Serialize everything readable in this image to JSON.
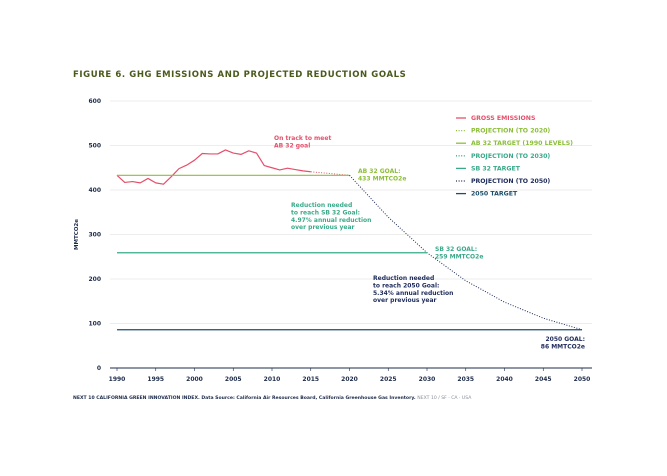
{
  "figure": {
    "title": "FIGURE 6. GHG EMISSIONS AND PROJECTED REDUCTION GOALS",
    "footer_source": "NEXT 10 CALIFORNIA GREEN INNOVATION INDEX. Data Source: California Air Resources Board, California Greenhouse Gas Inventory.",
    "footer_brand": "NEXT 10 / SF · CA · USA"
  },
  "colors": {
    "gross": "#e4506b",
    "ab32": "#8dbe3a",
    "sb32": "#3aa98a",
    "target2050": "#1d4e6b",
    "proj2050": "#1d2b5a",
    "grid": "#dcdcdc",
    "axis_text": "#1d2b4a"
  },
  "chart_data": {
    "type": "line",
    "title": "",
    "xlabel": "",
    "ylabel": "MMTCO2e",
    "xlim": [
      1990,
      2050
    ],
    "ylim": [
      0,
      600
    ],
    "x_ticks": [
      "1990",
      "1995",
      "2000",
      "2005",
      "2010",
      "2015",
      "2020",
      "2025",
      "2030",
      "2035",
      "2040",
      "2045",
      "2050"
    ],
    "y_ticks": [
      "0",
      "100",
      "200",
      "300",
      "400",
      "500",
      "600"
    ],
    "grid": "horizontal",
    "legend_position": "top-right",
    "legend": [
      {
        "label": "GROSS EMISSIONS",
        "style": "solid",
        "color": "#e4506b"
      },
      {
        "label": "PROJECTION (TO 2020)",
        "style": "dotted",
        "color": "#8dbe3a"
      },
      {
        "label": "AB 32 TARGET (1990 LEVELS)",
        "style": "solid",
        "color": "#8dbe3a"
      },
      {
        "label": "PROJECTION (TO 2030)",
        "style": "dotted",
        "color": "#3aa98a"
      },
      {
        "label": "SB 32 TARGET",
        "style": "solid",
        "color": "#3aa98a"
      },
      {
        "label": "PROJECTION (TO 2050)",
        "style": "dotted",
        "color": "#1d2b5a"
      },
      {
        "label": "2050 TARGET",
        "style": "solid",
        "color": "#1d4e6b"
      }
    ],
    "series": [
      {
        "name": "GROSS EMISSIONS",
        "x": [
          1990,
          1991,
          1992,
          1993,
          1994,
          1995,
          1996,
          1997,
          1998,
          1999,
          2000,
          2001,
          2002,
          2003,
          2004,
          2005,
          2006,
          2007,
          2008,
          2009,
          2010,
          2011,
          2012,
          2013,
          2014,
          2015
        ],
        "y": [
          433,
          417,
          419,
          416,
          426,
          416,
          413,
          430,
          448,
          456,
          467,
          482,
          481,
          481,
          490,
          483,
          480,
          488,
          483,
          455,
          450,
          445,
          449,
          446,
          443,
          441
        ]
      },
      {
        "name": "PROJECTION (TO 2020)",
        "x": [
          2015,
          2020
        ],
        "y": [
          441,
          433
        ]
      },
      {
        "name": "AB 32 TARGET (1990 LEVELS)",
        "x": [
          1990,
          2020
        ],
        "y": [
          433,
          433
        ]
      },
      {
        "name": "PROJECTION (TO 2050)",
        "x": [
          2020,
          2025,
          2030,
          2035,
          2040,
          2045,
          2050
        ],
        "y": [
          433,
          339,
          259,
          196,
          148,
          112,
          86
        ]
      },
      {
        "name": "SB 32 TARGET",
        "x": [
          1990,
          2030
        ],
        "y": [
          259,
          259
        ]
      },
      {
        "name": "2050 TARGET",
        "x": [
          1990,
          2050
        ],
        "y": [
          86,
          86
        ]
      }
    ],
    "annotations": {
      "on_track": [
        "On track to meet",
        "AB 32 goal"
      ],
      "ab32_goal": [
        "AB 32 GOAL:",
        "433 MMTCO2e"
      ],
      "sb32_reduction": [
        "Reduction needed",
        "to reach SB 32 Goal:",
        "4.97% annual reduction",
        "over previous year"
      ],
      "sb32_goal": [
        "SB 32 GOAL:",
        "259 MMTCO2e"
      ],
      "goal2050_reduction": [
        "Reduction needed",
        "to reach 2050 Goal:",
        "5.34% annual reduction",
        "over previous year"
      ],
      "goal2050": [
        "2050 GOAL:",
        "86 MMTCO2e"
      ]
    }
  }
}
